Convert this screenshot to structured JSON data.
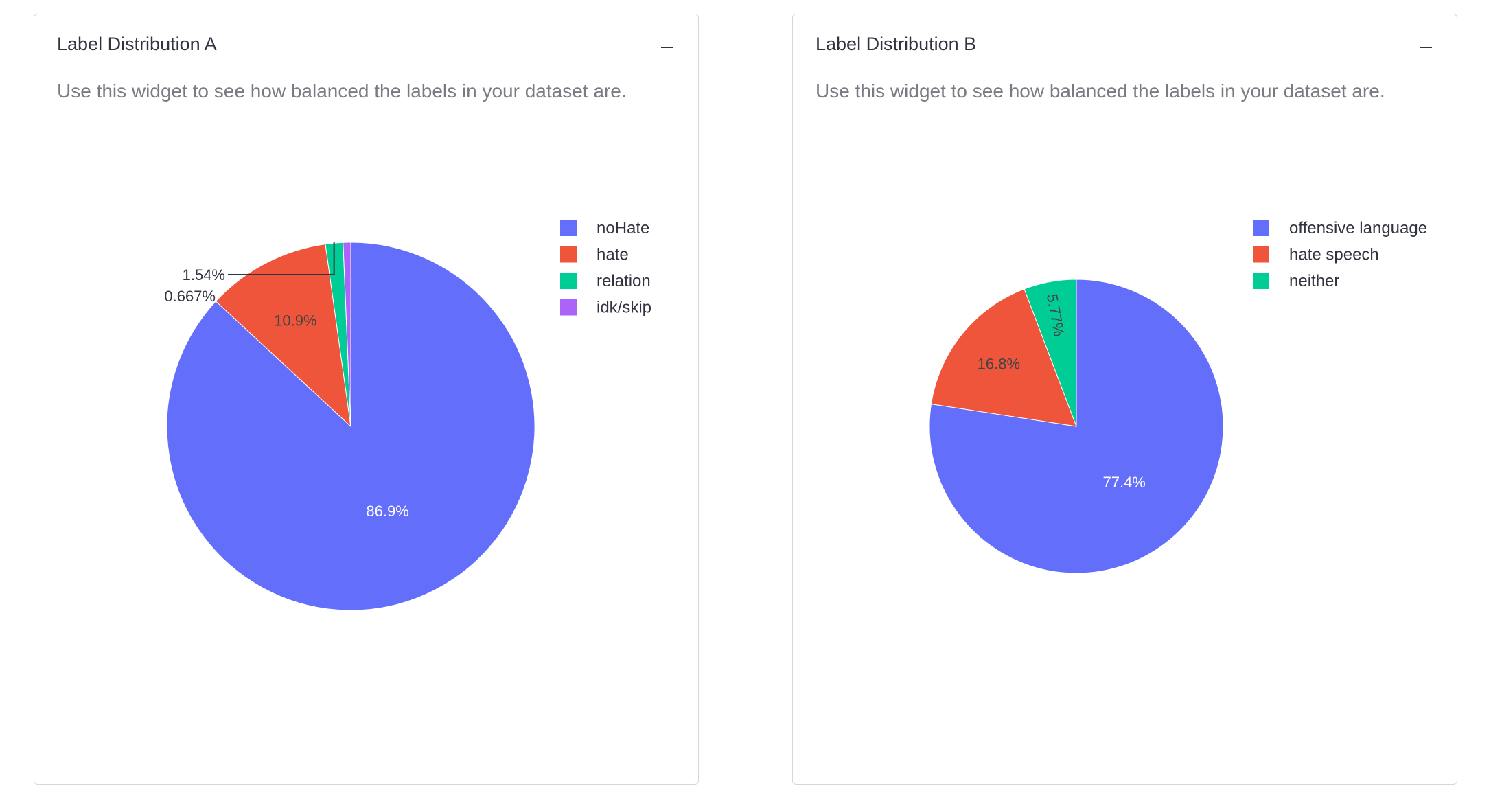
{
  "widgets": [
    {
      "title": "Label Distribution A",
      "description": "Use this widget to see how balanced the labels in your dataset are.",
      "collapse_icon": "minus-icon",
      "chart_data": {
        "type": "pie",
        "categories": [
          "noHate",
          "hate",
          "relation",
          "idk/skip"
        ],
        "values": [
          86.9,
          10.9,
          1.54,
          0.667
        ],
        "labels": [
          "86.9%",
          "10.9%",
          "1.54%",
          "0.667%"
        ],
        "colors": [
          "#636efa",
          "#ef553b",
          "#00cc96",
          "#ab63fa"
        ],
        "legend_position": "top-right"
      }
    },
    {
      "title": "Label Distribution B",
      "description": "Use this widget to see how balanced the labels in your dataset are.",
      "collapse_icon": "minus-icon",
      "chart_data": {
        "type": "pie",
        "categories": [
          "offensive language",
          "hate speech",
          "neither"
        ],
        "values": [
          77.4,
          16.8,
          5.77
        ],
        "labels": [
          "77.4%",
          "16.8%",
          "5.77%"
        ],
        "colors": [
          "#636efa",
          "#ef553b",
          "#00cc96"
        ],
        "legend_position": "top-right"
      }
    }
  ]
}
